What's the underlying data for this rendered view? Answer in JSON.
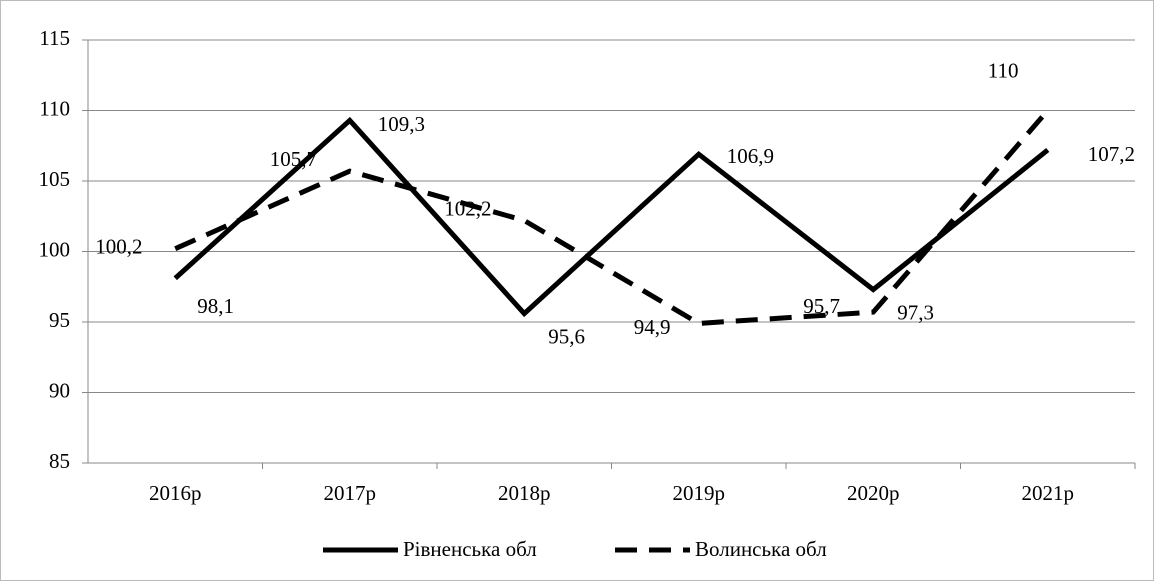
{
  "chart_data": {
    "type": "line",
    "categories": [
      "2016р",
      "2017р",
      "2018р",
      "2019р",
      "2020р",
      "2021р"
    ],
    "series": [
      {
        "name": "Рівненська обл",
        "color": "#000000",
        "dash": false,
        "values": [
          98.1,
          109.3,
          95.6,
          106.9,
          97.3,
          107.2
        ],
        "value_labels": [
          "98,1",
          "109,3",
          "95,6",
          "106,9",
          "97,3",
          "107,2"
        ]
      },
      {
        "name": "Волинська обл",
        "color": "#000000",
        "dash": true,
        "values": [
          100.2,
          105.7,
          102.2,
          94.9,
          95.7,
          110
        ],
        "value_labels": [
          "100,2",
          "105,7",
          "102,2",
          "94,9",
          "95,7",
          "110"
        ]
      }
    ],
    "ylim": [
      85,
      115
    ],
    "yticks": [
      85,
      90,
      95,
      100,
      105,
      110,
      115
    ],
    "grid": true,
    "legend": "bottom"
  }
}
